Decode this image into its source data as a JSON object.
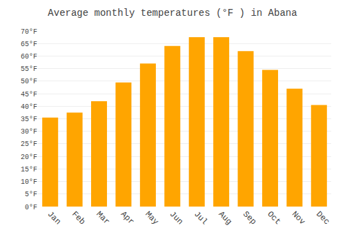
{
  "chart_data": {
    "type": "bar",
    "title": "Average monthly temperatures (°F ) in Abana",
    "categories": [
      "Jan",
      "Feb",
      "Mar",
      "Apr",
      "May",
      "Jun",
      "Jul",
      "Aug",
      "Sep",
      "Oct",
      "Nov",
      "Dec"
    ],
    "values": [
      35.5,
      37.5,
      42,
      49.5,
      57,
      64,
      67.5,
      67.5,
      62,
      54.5,
      47,
      40.5
    ],
    "color": "#FFA500",
    "ylim": [
      0,
      70
    ],
    "yticks": [
      {
        "value": 0,
        "label": "0°F"
      },
      {
        "value": 5,
        "label": "5°F"
      },
      {
        "value": 10,
        "label": "10°F"
      },
      {
        "value": 15,
        "label": "15°F"
      },
      {
        "value": 20,
        "label": "20°F"
      },
      {
        "value": 25,
        "label": "25°F"
      },
      {
        "value": 30,
        "label": "30°F"
      },
      {
        "value": 35,
        "label": "35°F"
      },
      {
        "value": 40,
        "label": "40°F"
      },
      {
        "value": 45,
        "label": "45°F"
      },
      {
        "value": 50,
        "label": "50°F"
      },
      {
        "value": 55,
        "label": "55°F"
      },
      {
        "value": 60,
        "label": "60°F"
      },
      {
        "value": 65,
        "label": "65°F"
      },
      {
        "value": 70,
        "label": "70°F"
      }
    ],
    "grid": true
  }
}
